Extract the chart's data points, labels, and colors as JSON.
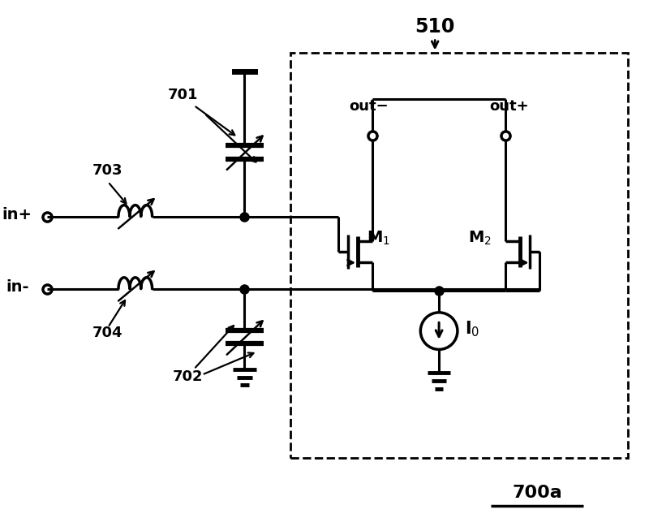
{
  "background_color": "#ffffff",
  "line_color": "#000000",
  "labels": {
    "in_plus": "in+",
    "in_minus": "in-",
    "out_minus": "out−",
    "out_plus": "out+",
    "M1": "M$_1$",
    "M2": "M$_2$",
    "I0": "I$_0$",
    "num701": "701",
    "num702": "702",
    "num703": "703",
    "num704": "704",
    "num510": "510",
    "num700a": "700a"
  },
  "figsize": [
    8.0,
    6.38
  ],
  "dpi": 100
}
